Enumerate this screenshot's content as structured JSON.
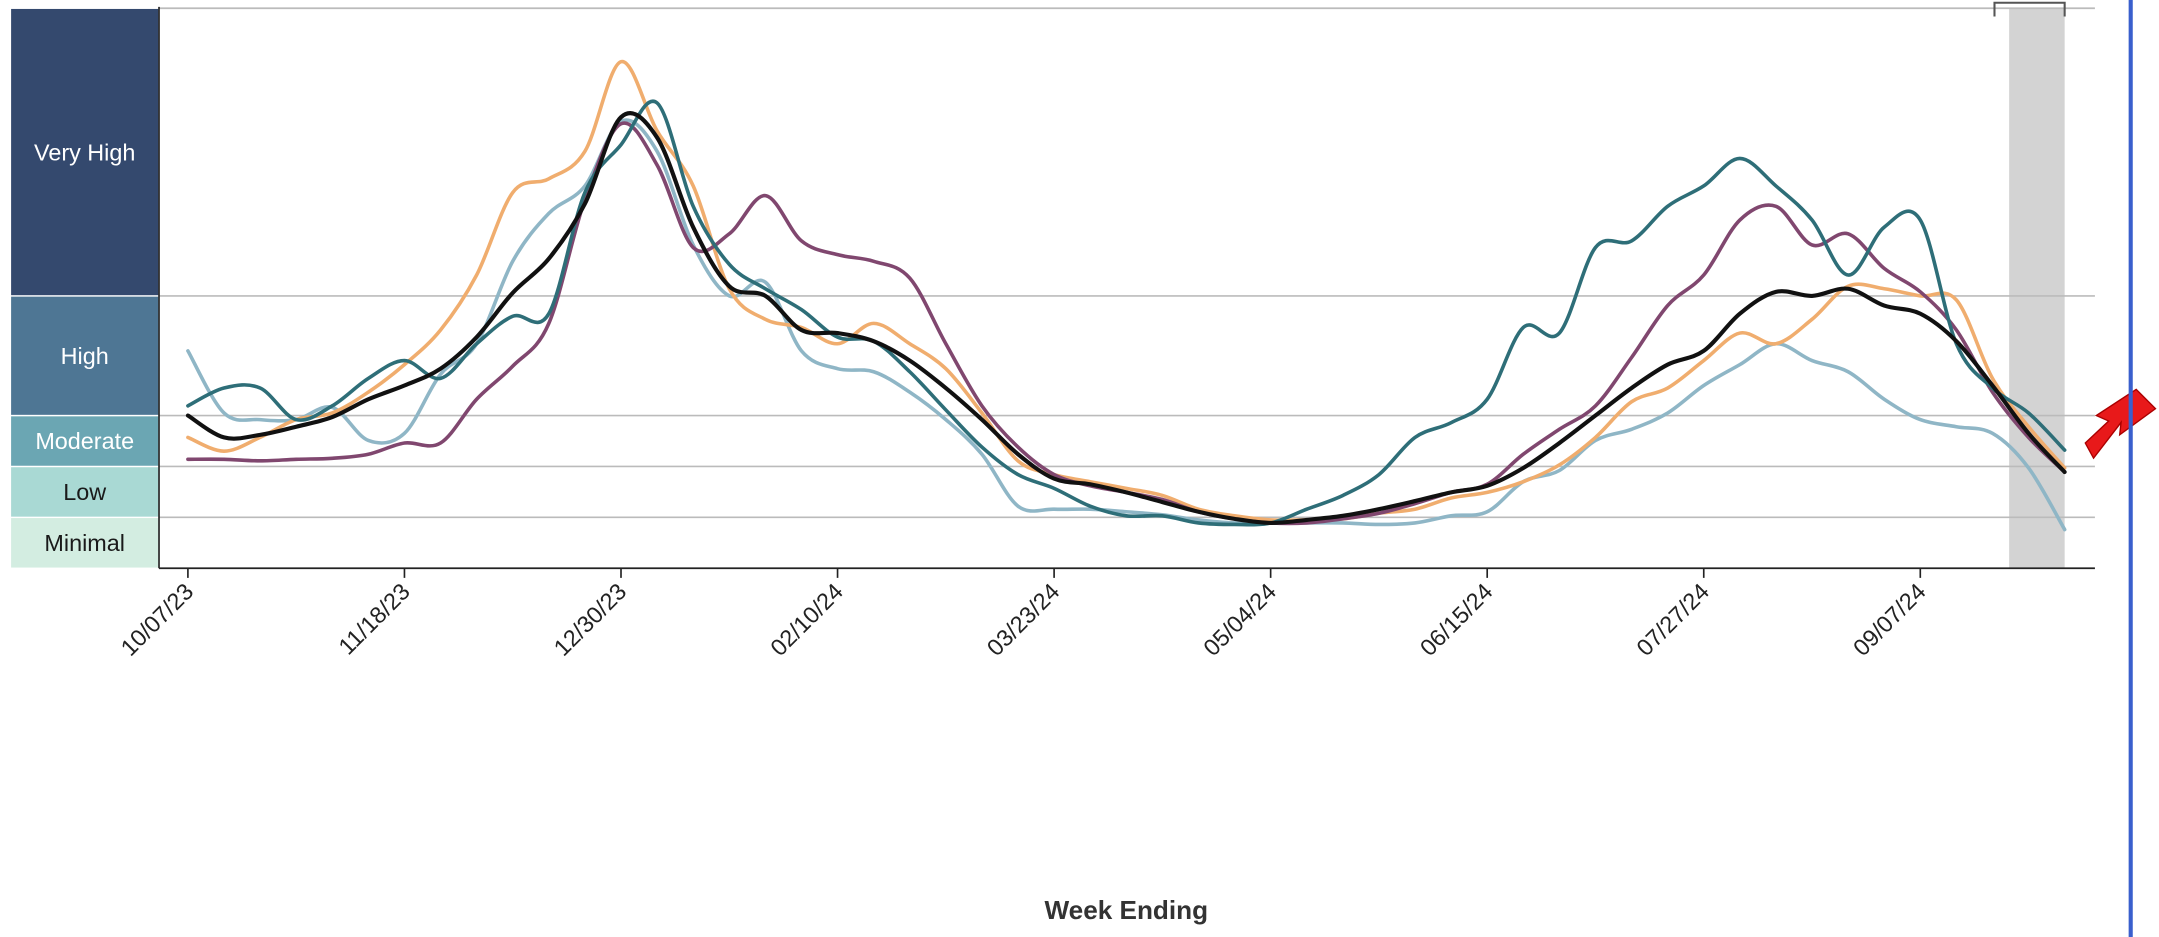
{
  "chart_data": {
    "type": "line",
    "x_label": "Week Ending",
    "categories": [
      "10/07/23",
      null,
      null,
      null,
      null,
      null,
      "11/18/23",
      null,
      null,
      null,
      null,
      null,
      "12/30/23",
      null,
      null,
      null,
      null,
      null,
      "02/10/24",
      null,
      null,
      null,
      null,
      null,
      "03/23/24",
      null,
      null,
      null,
      null,
      null,
      "05/04/24",
      null,
      null,
      null,
      null,
      null,
      "06/15/24",
      null,
      null,
      null,
      null,
      null,
      "07/27/24",
      null,
      null,
      null,
      null,
      null,
      "09/07/24",
      null,
      null,
      null,
      null
    ],
    "ylim": [
      0,
      11
    ],
    "levels": [
      {
        "label": "Minimal",
        "from": 0,
        "to": 1,
        "color": "#d3ede1",
        "text_color": "#1a1a1a"
      },
      {
        "label": "Low",
        "from": 1,
        "to": 2,
        "color": "#a9d9d4",
        "text_color": "#1a1a1a"
      },
      {
        "label": "Moderate",
        "from": 2,
        "to": 3,
        "color": "#6ba6b3",
        "text_color": "#ffffff"
      },
      {
        "label": "High",
        "from": 3,
        "to": 5.35,
        "color": "#4e7694",
        "text_color": "#ffffff"
      },
      {
        "label": "Very High",
        "from": 5.35,
        "to": 11,
        "color": "#34496e",
        "text_color": "#ffffff"
      }
    ],
    "series": [
      {
        "color": "#8fb6c6",
        "values": [
          4.27,
          3.05,
          2.92,
          2.92,
          3.16,
          2.51,
          2.65,
          3.81,
          4.41,
          6.03,
          6.97,
          7.51,
          8.78,
          8.19,
          6.35,
          5.35,
          5.62,
          4.27,
          3.92,
          3.86,
          3.46,
          2.92,
          2.24,
          1.22,
          1.16,
          1.16,
          1.11,
          1.05,
          0.95,
          0.89,
          0.89,
          0.89,
          0.89,
          0.86,
          0.89,
          1.03,
          1.11,
          1.7,
          1.92,
          2.51,
          2.73,
          3.05,
          3.59,
          4.0,
          4.41,
          4.08,
          3.86,
          3.32,
          2.92,
          2.78,
          2.65,
          1.97,
          0.76
        ]
      },
      {
        "color": "#f0ad6e",
        "values": [
          2.57,
          2.3,
          2.57,
          2.92,
          3.05,
          3.46,
          4.0,
          4.68,
          5.76,
          7.38,
          7.65,
          8.19,
          9.95,
          8.59,
          7.51,
          5.49,
          4.89,
          4.73,
          4.41,
          4.81,
          4.41,
          3.92,
          3.05,
          2.11,
          1.84,
          1.7,
          1.57,
          1.43,
          1.16,
          1.03,
          0.95,
          0.95,
          0.97,
          1.08,
          1.16,
          1.38,
          1.49,
          1.7,
          2.03,
          2.57,
          3.27,
          3.54,
          4.08,
          4.62,
          4.41,
          4.89,
          5.54,
          5.49,
          5.35,
          5.27,
          3.73,
          2.78,
          1.97
        ]
      },
      {
        "color": "#80476f",
        "values": [
          2.14,
          2.14,
          2.11,
          2.14,
          2.16,
          2.24,
          2.46,
          2.46,
          3.32,
          3.97,
          4.81,
          7.24,
          8.73,
          7.92,
          6.3,
          6.57,
          7.32,
          6.43,
          6.16,
          6.03,
          5.7,
          4.41,
          3.19,
          2.38,
          1.84,
          1.62,
          1.49,
          1.35,
          1.11,
          0.97,
          0.89,
          0.89,
          0.97,
          1.08,
          1.27,
          1.49,
          1.65,
          2.24,
          2.73,
          3.19,
          4.14,
          5.16,
          5.76,
          6.84,
          7.11,
          6.35,
          6.57,
          5.89,
          5.43,
          4.68,
          3.46,
          2.57,
          1.89
        ]
      },
      {
        "color": "#2e6e78",
        "values": [
          3.19,
          3.54,
          3.54,
          2.92,
          3.19,
          3.73,
          4.08,
          3.73,
          4.41,
          4.95,
          5.0,
          7.38,
          8.32,
          9.14,
          7.11,
          5.97,
          5.49,
          5.08,
          4.54,
          4.46,
          3.86,
          3.11,
          2.38,
          1.84,
          1.57,
          1.22,
          1.03,
          1.03,
          0.89,
          0.86,
          0.89,
          1.16,
          1.43,
          1.84,
          2.57,
          2.86,
          3.32,
          4.73,
          4.62,
          6.3,
          6.43,
          7.11,
          7.51,
          8.05,
          7.51,
          6.84,
          5.76,
          6.7,
          6.84,
          4.41,
          3.54,
          3.05,
          2.32
        ]
      },
      {
        "color": "#111111",
        "values": [
          3.0,
          2.57,
          2.62,
          2.78,
          2.97,
          3.32,
          3.59,
          3.92,
          4.54,
          5.41,
          6.08,
          7.16,
          8.86,
          8.46,
          6.7,
          5.54,
          5.35,
          4.68,
          4.62,
          4.46,
          4.08,
          3.54,
          2.92,
          2.24,
          1.76,
          1.65,
          1.49,
          1.3,
          1.11,
          0.97,
          0.89,
          0.95,
          1.03,
          1.16,
          1.32,
          1.49,
          1.62,
          1.97,
          2.46,
          3.0,
          3.54,
          4.0,
          4.27,
          5.0,
          5.43,
          5.35,
          5.49,
          5.16,
          5.0,
          4.46,
          3.59,
          2.65,
          1.89
        ]
      }
    ]
  }
}
